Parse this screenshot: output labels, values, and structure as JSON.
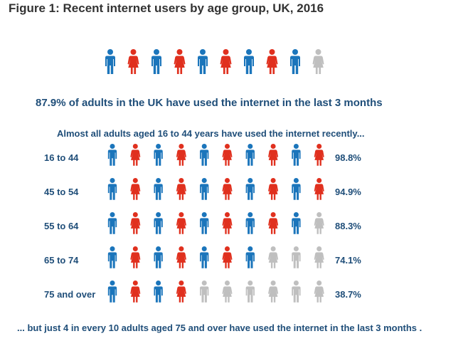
{
  "title": "Figure 1: Recent internet users by age group, UK, 2016",
  "headline": "87.9% of adults in the UK have used the internet  in the last 3 months",
  "subheading": "Almost all adults aged 16  to  44 years have used the internet recently...",
  "footer": "... but just 4 in every 10 adults aged 75 and over have used the internet in the last 3 months .",
  "colors": {
    "male": "#1b75bb",
    "female": "#e0301e",
    "inactive": "#bfbfbf",
    "text": "#1f4e79"
  },
  "chart_data": {
    "type": "pictogram",
    "units_per_row": 10,
    "overall": {
      "label": "87.9%",
      "value": 87.9,
      "filled_icons": 9
    },
    "categories": [
      "16 to 44",
      "45 to 54",
      "55 to 64",
      "65 to 74",
      "75 and over"
    ],
    "value_labels": [
      "98.8%",
      "94.9%",
      "88.3%",
      "74.1%",
      "38.7%"
    ],
    "values": [
      98.8,
      94.9,
      88.3,
      74.1,
      38.7
    ],
    "filled_icons": [
      10,
      10,
      9,
      7,
      4
    ]
  }
}
